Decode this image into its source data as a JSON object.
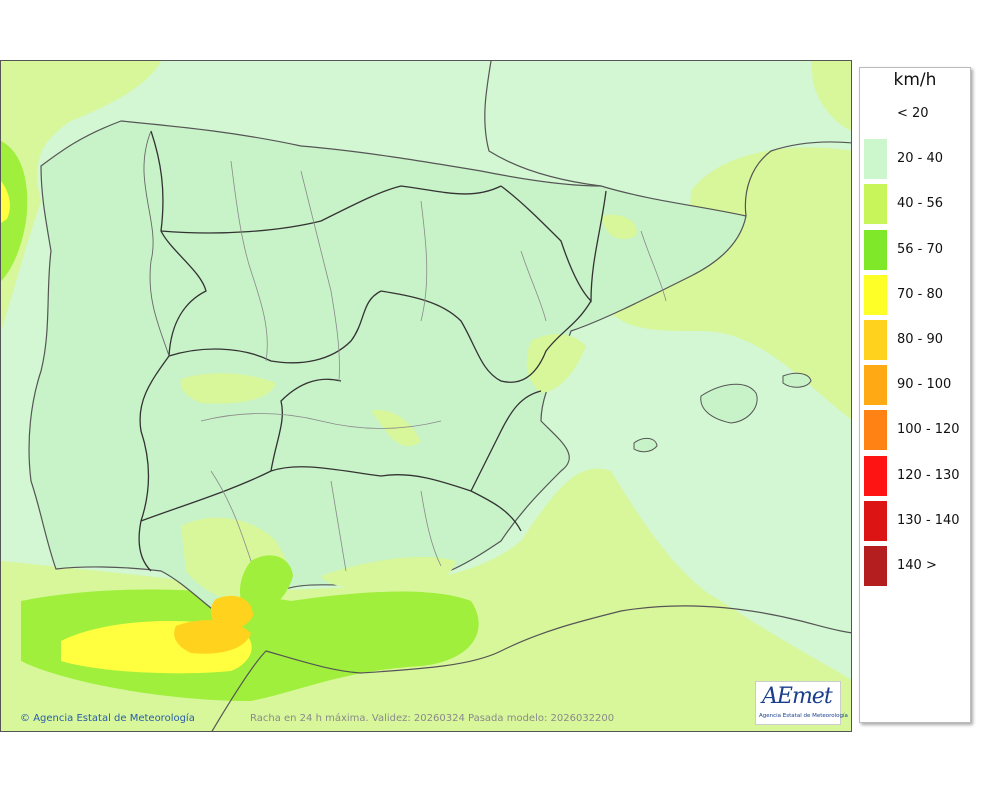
{
  "map": {
    "title_caption": "Racha en 24 h máxima. Validez: 20260324 Pasada modelo: 2026032200",
    "copyright": "Agencia Estatal de Meteorología",
    "logo": {
      "word": "AEmet",
      "subtitle": "Agencia Estatal de Meteorología"
    }
  },
  "legend": {
    "unit": "km/h",
    "items": [
      {
        "label": "< 20",
        "color": "#ffffff"
      },
      {
        "label": "20 - 40",
        "color": "#ccf7cc"
      },
      {
        "label": "40 - 56",
        "color": "#c8f55a"
      },
      {
        "label": "56 - 70",
        "color": "#7fe828"
      },
      {
        "label": "70 - 80",
        "color": "#ffff28"
      },
      {
        "label": "80 - 90",
        "color": "#ffd21e"
      },
      {
        "label": "90 - 100",
        "color": "#ffaa14"
      },
      {
        "label": "100 - 120",
        "color": "#ff8214"
      },
      {
        "label": "120 - 130",
        "color": "#ff1414"
      },
      {
        "label": "130 - 140",
        "color": "#dc1414"
      },
      {
        "label": "140 >",
        "color": "#b41e1e"
      }
    ]
  }
}
